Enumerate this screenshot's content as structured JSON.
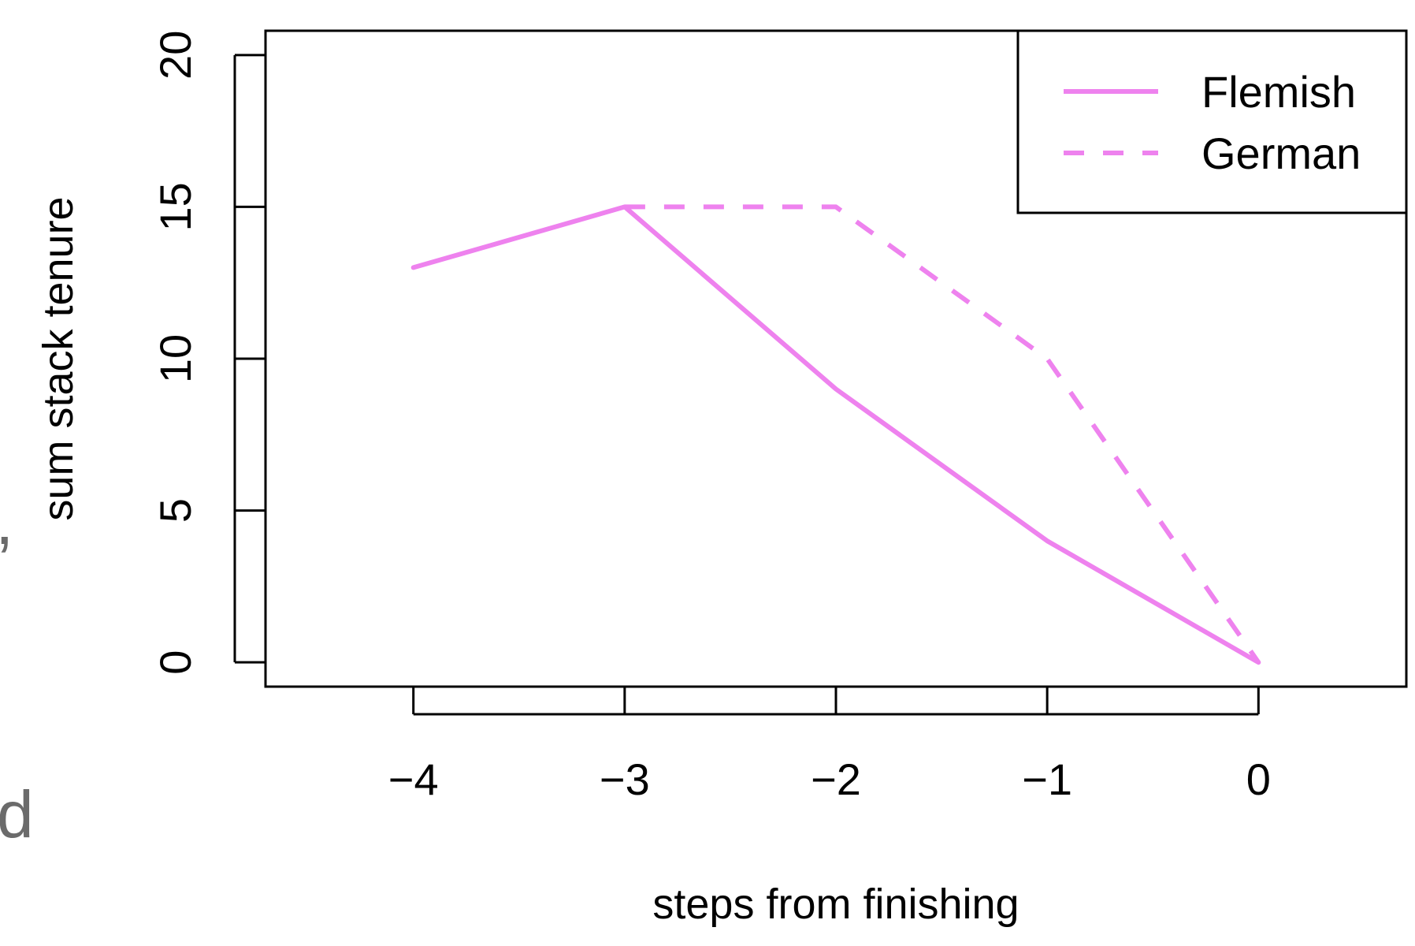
{
  "edge_fragments": {
    "left_mid": ",",
    "left_bottom": "d",
    "color": "#6b6b6b"
  },
  "chart_data": {
    "type": "line",
    "title": "",
    "xlabel": "steps from finishing",
    "ylabel": "sum stack tenure",
    "x": [
      -4,
      -3,
      -2,
      -1,
      0
    ],
    "xticks": [
      -4,
      -3,
      -2,
      -1,
      0
    ],
    "xtick_labels": [
      "−4",
      "−3",
      "−2",
      "−1",
      "0"
    ],
    "xlim": [
      -4.7,
      0.7
    ],
    "yticks": [
      0,
      5,
      10,
      15,
      20
    ],
    "ytick_labels": [
      "0",
      "5",
      "10",
      "15",
      "20"
    ],
    "ylim": [
      -0.8,
      20.8
    ],
    "grid": false,
    "legend_position": "top-right",
    "series": [
      {
        "name": "Flemish",
        "x": [
          -4,
          -3,
          -2,
          -1,
          0
        ],
        "values": [
          13,
          15,
          9,
          4,
          0
        ],
        "color": "#EE82EE",
        "dash": "solid"
      },
      {
        "name": "German",
        "x": [
          -3,
          -2,
          -1,
          0
        ],
        "values": [
          15,
          15,
          10,
          0
        ],
        "color": "#EE82EE",
        "dash": "dashed"
      }
    ]
  }
}
